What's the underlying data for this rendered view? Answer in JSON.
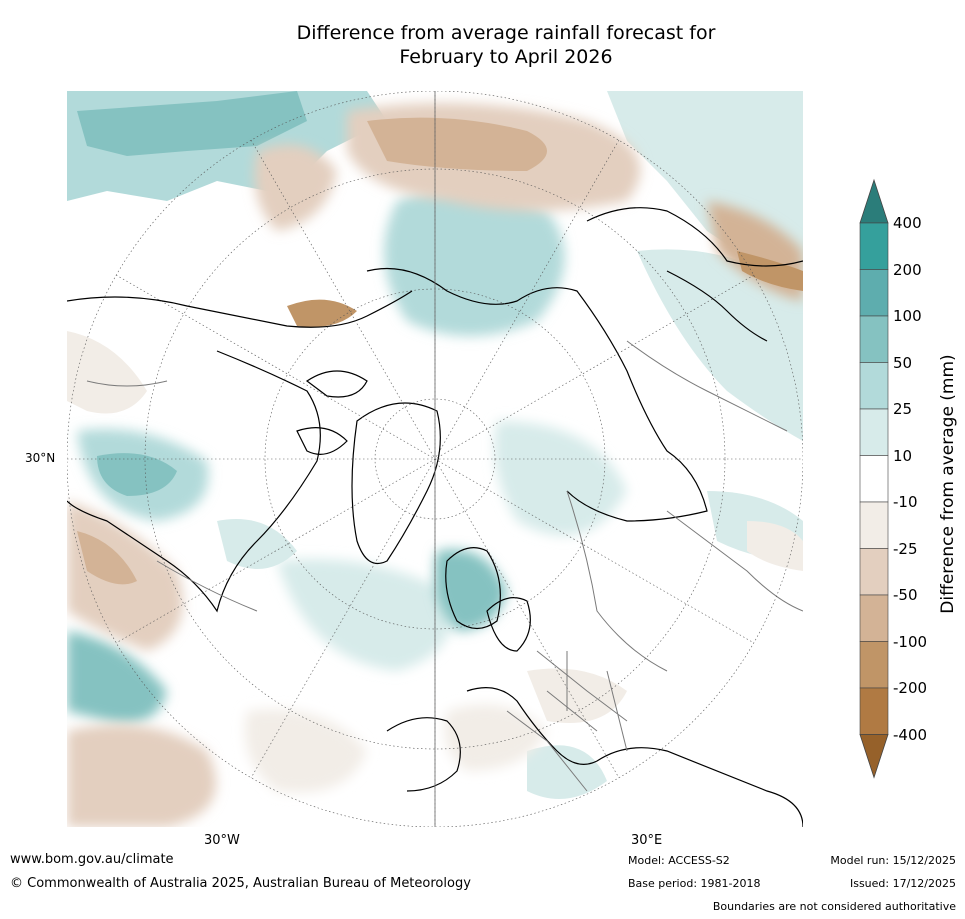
{
  "title": {
    "line1": "Difference from average rainfall forecast for",
    "line2": "February to April 2026"
  },
  "map": {
    "projection": "north-polar-stereographic",
    "lat_label": "30°N",
    "lon_labels": {
      "west": "30°W",
      "east": "30°E"
    },
    "colors": {
      "land_border": "#7a7a7a",
      "coastline": "#000000",
      "grid": "#555555"
    }
  },
  "colorbar": {
    "title": "Difference from average (mm)",
    "levels": [
      "400",
      "200",
      "100",
      "50",
      "25",
      "10",
      "-10",
      "-25",
      "-50",
      "-100",
      "-200",
      "-400"
    ],
    "colors_top_to_bottom": [
      "#2b7d7a",
      "#35a09c",
      "#5eadae",
      "#85c2c1",
      "#b2dada",
      "#d7ebea",
      "#ffffff",
      "#f2ede7",
      "#e3cfbf",
      "#d3b396",
      "#c09567",
      "#b07a43",
      "#96612a"
    ]
  },
  "footer": {
    "url": "www.bom.gov.au/climate",
    "copyright": "© Commonwealth of Australia 2025, Australian Bureau of Meteorology",
    "model": "Model: ACCESS-S2",
    "base_period": "Base period: 1981-2018",
    "model_run": "Model run: 15/12/2025",
    "issued": "Issued: 17/12/2025",
    "disclaimer": "Boundaries are not considered authoritative"
  }
}
